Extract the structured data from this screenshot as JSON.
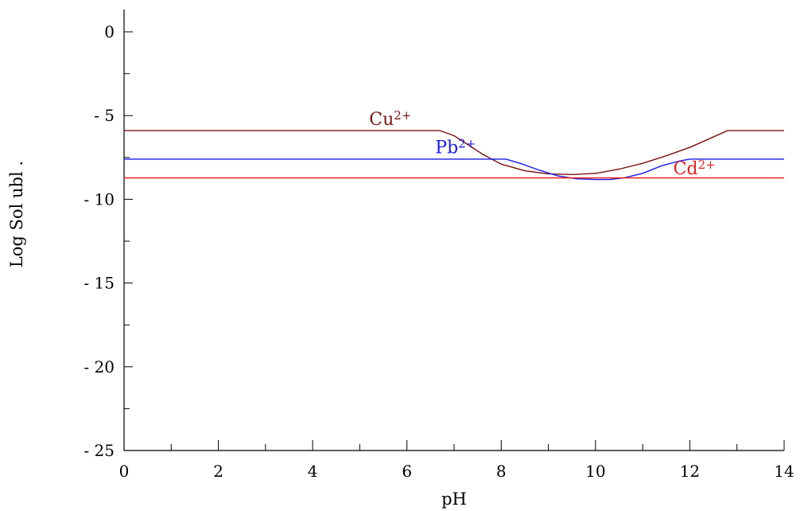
{
  "chart_data": {
    "type": "line",
    "title": "",
    "xlabel": "pH",
    "ylabel": "Log Sol ubl .",
    "xlim": [
      0,
      14
    ],
    "ylim": [
      -25,
      0
    ],
    "x_ticks": [
      0,
      2,
      4,
      6,
      8,
      10,
      12,
      14
    ],
    "x_tick_labels": [
      "0",
      "2",
      "4",
      "6",
      "8",
      "10",
      "12",
      "14"
    ],
    "y_ticks": [
      0,
      -5,
      -10,
      -15,
      -20,
      -25
    ],
    "y_tick_labels": [
      "0",
      "- 5",
      "- 10",
      "- 15",
      "- 20",
      "- 25"
    ],
    "grid": false,
    "series": [
      {
        "name": "Cu2+",
        "label_base": "Cu",
        "label_sup": "2+",
        "color": "#7a1010",
        "x": [
          0,
          6.7,
          7.0,
          7.3,
          7.6,
          8.0,
          8.5,
          9.0,
          9.5,
          10.0,
          10.5,
          11.0,
          11.5,
          12.0,
          12.4,
          12.8,
          14
        ],
        "y": [
          -5.9,
          -5.9,
          -6.2,
          -6.75,
          -7.3,
          -7.9,
          -8.3,
          -8.48,
          -8.52,
          -8.45,
          -8.2,
          -7.85,
          -7.4,
          -6.9,
          -6.4,
          -5.9,
          -5.9
        ]
      },
      {
        "name": "Pb2+",
        "label_base": "Pb",
        "label_sup": "2+",
        "color": "#1a1ae6",
        "x": [
          0,
          8.1,
          8.4,
          8.8,
          9.2,
          9.6,
          10.0,
          10.3,
          10.6,
          11.0,
          11.4,
          11.8,
          12.0,
          14
        ],
        "y": [
          -7.6,
          -7.6,
          -7.85,
          -8.25,
          -8.6,
          -8.78,
          -8.82,
          -8.82,
          -8.72,
          -8.45,
          -8.0,
          -7.7,
          -7.6,
          -7.6
        ]
      },
      {
        "name": "Cd2+",
        "label_base": "Cd",
        "label_sup": "2+",
        "color": "#e62020",
        "x": [
          0,
          14
        ],
        "y": [
          -8.72,
          -8.72
        ]
      }
    ],
    "series_label_positions": [
      {
        "x": 5.2,
        "y": -5.55
      },
      {
        "x": 6.6,
        "y": -7.25
      },
      {
        "x": 11.65,
        "y": -8.5
      }
    ]
  }
}
